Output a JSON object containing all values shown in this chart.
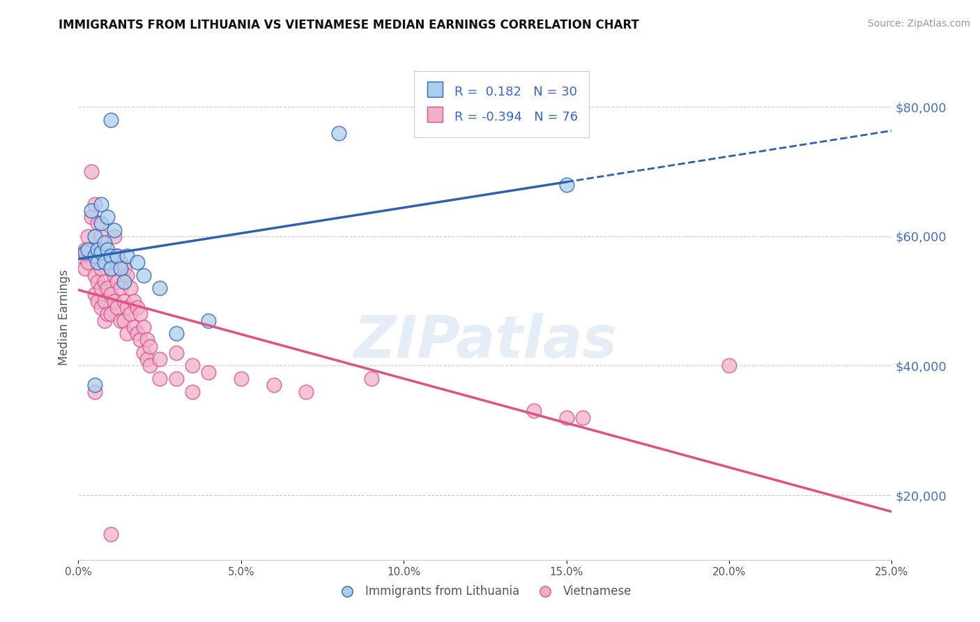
{
  "title": "IMMIGRANTS FROM LITHUANIA VS VIETNAMESE MEDIAN EARNINGS CORRELATION CHART",
  "source": "Source: ZipAtlas.com",
  "ylabel": "Median Earnings",
  "y_ticks": [
    20000,
    40000,
    60000,
    80000
  ],
  "y_tick_labels": [
    "$20,000",
    "$40,000",
    "$60,000",
    "$80,000"
  ],
  "x_range": [
    0.0,
    0.25
  ],
  "y_range": [
    10000,
    85000
  ],
  "lithuania_R": 0.182,
  "lithuania_N": 30,
  "vietnamese_R": -0.394,
  "vietnamese_N": 76,
  "lithuania_color": "#aacfee",
  "vietnamese_color": "#f0b0cc",
  "lithuania_line_color": "#3060b0",
  "vietnamese_line_color": "#e05080",
  "legend_labels": [
    "Immigrants from Lithuania",
    "Vietnamese"
  ],
  "lithuania_points": [
    [
      0.002,
      57500
    ],
    [
      0.003,
      58000
    ],
    [
      0.004,
      64000
    ],
    [
      0.005,
      57000
    ],
    [
      0.005,
      60000
    ],
    [
      0.006,
      58000
    ],
    [
      0.006,
      56000
    ],
    [
      0.007,
      57500
    ],
    [
      0.007,
      62000
    ],
    [
      0.007,
      65000
    ],
    [
      0.008,
      59000
    ],
    [
      0.008,
      56000
    ],
    [
      0.009,
      63000
    ],
    [
      0.009,
      58000
    ],
    [
      0.01,
      57000
    ],
    [
      0.01,
      55000
    ],
    [
      0.011,
      61000
    ],
    [
      0.012,
      57000
    ],
    [
      0.013,
      55000
    ],
    [
      0.014,
      53000
    ],
    [
      0.015,
      57000
    ],
    [
      0.018,
      56000
    ],
    [
      0.02,
      54000
    ],
    [
      0.025,
      52000
    ],
    [
      0.03,
      45000
    ],
    [
      0.04,
      47000
    ],
    [
      0.08,
      76000
    ],
    [
      0.01,
      78000
    ],
    [
      0.15,
      68000
    ],
    [
      0.005,
      37000
    ]
  ],
  "vietnamese_points": [
    [
      0.001,
      57000
    ],
    [
      0.002,
      58000
    ],
    [
      0.002,
      55000
    ],
    [
      0.003,
      60000
    ],
    [
      0.003,
      56000
    ],
    [
      0.004,
      70000
    ],
    [
      0.004,
      63000
    ],
    [
      0.004,
      58000
    ],
    [
      0.005,
      65000
    ],
    [
      0.005,
      57000
    ],
    [
      0.005,
      54000
    ],
    [
      0.005,
      51000
    ],
    [
      0.006,
      62000
    ],
    [
      0.006,
      57000
    ],
    [
      0.006,
      53000
    ],
    [
      0.006,
      50000
    ],
    [
      0.007,
      60000
    ],
    [
      0.007,
      55000
    ],
    [
      0.007,
      52000
    ],
    [
      0.007,
      49000
    ],
    [
      0.008,
      57000
    ],
    [
      0.008,
      53000
    ],
    [
      0.008,
      50000
    ],
    [
      0.008,
      47000
    ],
    [
      0.009,
      56000
    ],
    [
      0.009,
      52000
    ],
    [
      0.009,
      48000
    ],
    [
      0.01,
      55000
    ],
    [
      0.01,
      51000
    ],
    [
      0.01,
      48000
    ],
    [
      0.011,
      60000
    ],
    [
      0.011,
      54000
    ],
    [
      0.011,
      50000
    ],
    [
      0.012,
      57000
    ],
    [
      0.012,
      53000
    ],
    [
      0.012,
      49000
    ],
    [
      0.013,
      56000
    ],
    [
      0.013,
      52000
    ],
    [
      0.013,
      47000
    ],
    [
      0.014,
      55000
    ],
    [
      0.014,
      50000
    ],
    [
      0.014,
      47000
    ],
    [
      0.015,
      54000
    ],
    [
      0.015,
      49000
    ],
    [
      0.015,
      45000
    ],
    [
      0.016,
      52000
    ],
    [
      0.016,
      48000
    ],
    [
      0.017,
      50000
    ],
    [
      0.017,
      46000
    ],
    [
      0.018,
      49000
    ],
    [
      0.018,
      45000
    ],
    [
      0.019,
      48000
    ],
    [
      0.019,
      44000
    ],
    [
      0.02,
      46000
    ],
    [
      0.02,
      42000
    ],
    [
      0.021,
      44000
    ],
    [
      0.021,
      41000
    ],
    [
      0.022,
      43000
    ],
    [
      0.022,
      40000
    ],
    [
      0.025,
      41000
    ],
    [
      0.025,
      38000
    ],
    [
      0.03,
      42000
    ],
    [
      0.03,
      38000
    ],
    [
      0.035,
      40000
    ],
    [
      0.035,
      36000
    ],
    [
      0.04,
      39000
    ],
    [
      0.05,
      38000
    ],
    [
      0.06,
      37000
    ],
    [
      0.07,
      36000
    ],
    [
      0.09,
      38000
    ],
    [
      0.14,
      33000
    ],
    [
      0.15,
      32000
    ],
    [
      0.155,
      32000
    ],
    [
      0.2,
      40000
    ],
    [
      0.01,
      14000
    ],
    [
      0.005,
      36000
    ]
  ]
}
